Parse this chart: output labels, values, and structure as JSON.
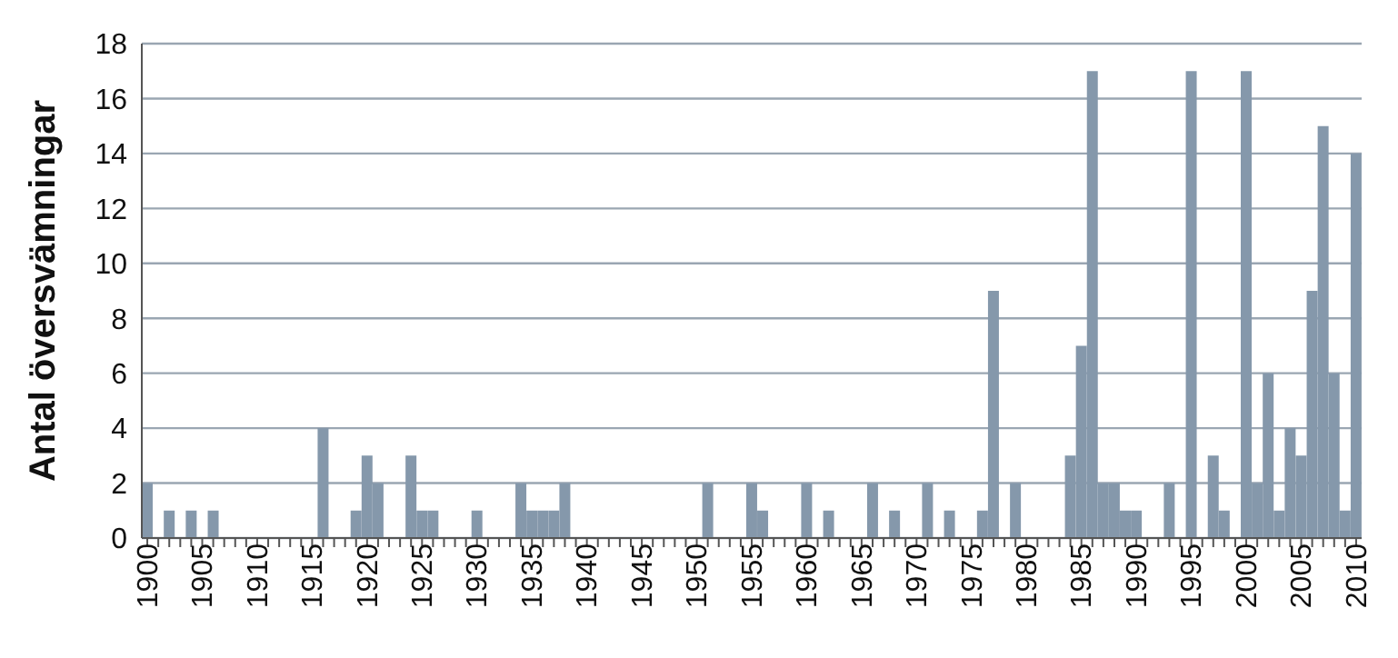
{
  "chart_data": {
    "type": "bar",
    "ylabel": "Antal översvämningar",
    "categories": [
      "1900",
      null,
      null,
      null,
      null,
      "1905",
      null,
      null,
      null,
      null,
      "1910",
      null,
      null,
      null,
      null,
      "1915",
      null,
      null,
      null,
      null,
      "1920",
      null,
      null,
      null,
      null,
      "1925",
      null,
      null,
      null,
      null,
      "1930",
      null,
      null,
      null,
      null,
      "1935",
      null,
      null,
      null,
      null,
      "1940",
      null,
      null,
      null,
      null,
      "1945",
      null,
      null,
      null,
      null,
      "1950",
      null,
      null,
      null,
      null,
      "1955",
      null,
      null,
      null,
      null,
      "1960",
      null,
      null,
      null,
      null,
      "1965",
      null,
      null,
      null,
      null,
      "1970",
      null,
      null,
      null,
      null,
      "1975",
      null,
      null,
      null,
      null,
      "1980",
      null,
      null,
      null,
      null,
      "1985",
      null,
      null,
      null,
      null,
      "1990",
      null,
      null,
      null,
      null,
      "1995",
      null,
      null,
      null,
      null,
      "2000",
      null,
      null,
      null,
      null,
      "2005",
      null,
      null,
      null,
      null,
      "2010"
    ],
    "values": [
      2,
      0,
      1,
      0,
      1,
      0,
      1,
      0,
      0,
      0,
      0,
      0,
      0,
      0,
      0,
      0,
      4,
      0,
      0,
      1,
      3,
      2,
      0,
      0,
      3,
      1,
      1,
      0,
      0,
      0,
      1,
      0,
      0,
      0,
      2,
      1,
      1,
      1,
      2,
      0,
      0,
      0,
      0,
      0,
      0,
      0,
      0,
      0,
      0,
      0,
      0,
      2,
      0,
      0,
      0,
      2,
      1,
      0,
      0,
      0,
      2,
      0,
      1,
      0,
      0,
      0,
      2,
      0,
      1,
      0,
      0,
      2,
      0,
      1,
      0,
      0,
      1,
      9,
      0,
      2,
      0,
      0,
      0,
      0,
      3,
      7,
      17,
      2,
      2,
      1,
      1,
      0,
      0,
      2,
      0,
      17,
      0,
      3,
      1,
      0,
      17,
      2,
      6,
      1,
      4,
      3,
      9,
      15,
      6,
      1,
      14
    ],
    "color": "#8598ab",
    "ylim": [
      0,
      18
    ],
    "yticks": [
      0,
      2,
      4,
      6,
      8,
      10,
      12,
      14,
      16,
      18
    ],
    "grid": "y"
  }
}
